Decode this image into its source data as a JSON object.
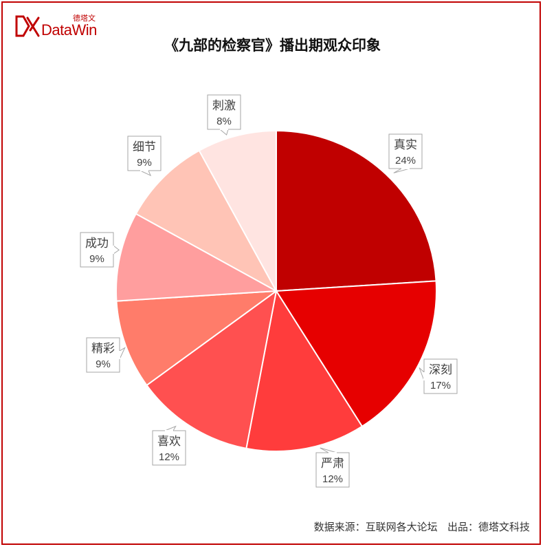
{
  "logo": {
    "cn": "德塔文",
    "en": "DataWin"
  },
  "source": {
    "label": "数据来源：互联网各大论坛",
    "publisher": "出品：德塔文科技"
  },
  "chart_data": {
    "type": "pie",
    "title": "《九部的检察官》播出期观众印象",
    "slices": [
      {
        "label": "真实",
        "value": 24,
        "display": "24%",
        "color": "#c00000"
      },
      {
        "label": "深刻",
        "value": 17,
        "display": "17%",
        "color": "#e60000"
      },
      {
        "label": "严肃",
        "value": 12,
        "display": "12%",
        "color": "#ff3c3c"
      },
      {
        "label": "喜欢",
        "value": 12,
        "display": "12%",
        "color": "#ff5050"
      },
      {
        "label": "精彩",
        "value": 9,
        "display": "9%",
        "color": "#ff7c6a"
      },
      {
        "label": "成功",
        "value": 9,
        "display": "9%",
        "color": "#ff9e9e"
      },
      {
        "label": "细节",
        "value": 9,
        "display": "9%",
        "color": "#ffc4b6"
      },
      {
        "label": "刺激",
        "value": 8,
        "display": "8%",
        "color": "#ffe4e1"
      }
    ],
    "label_style": "callout",
    "start_angle": "top",
    "direction": "clockwise"
  }
}
